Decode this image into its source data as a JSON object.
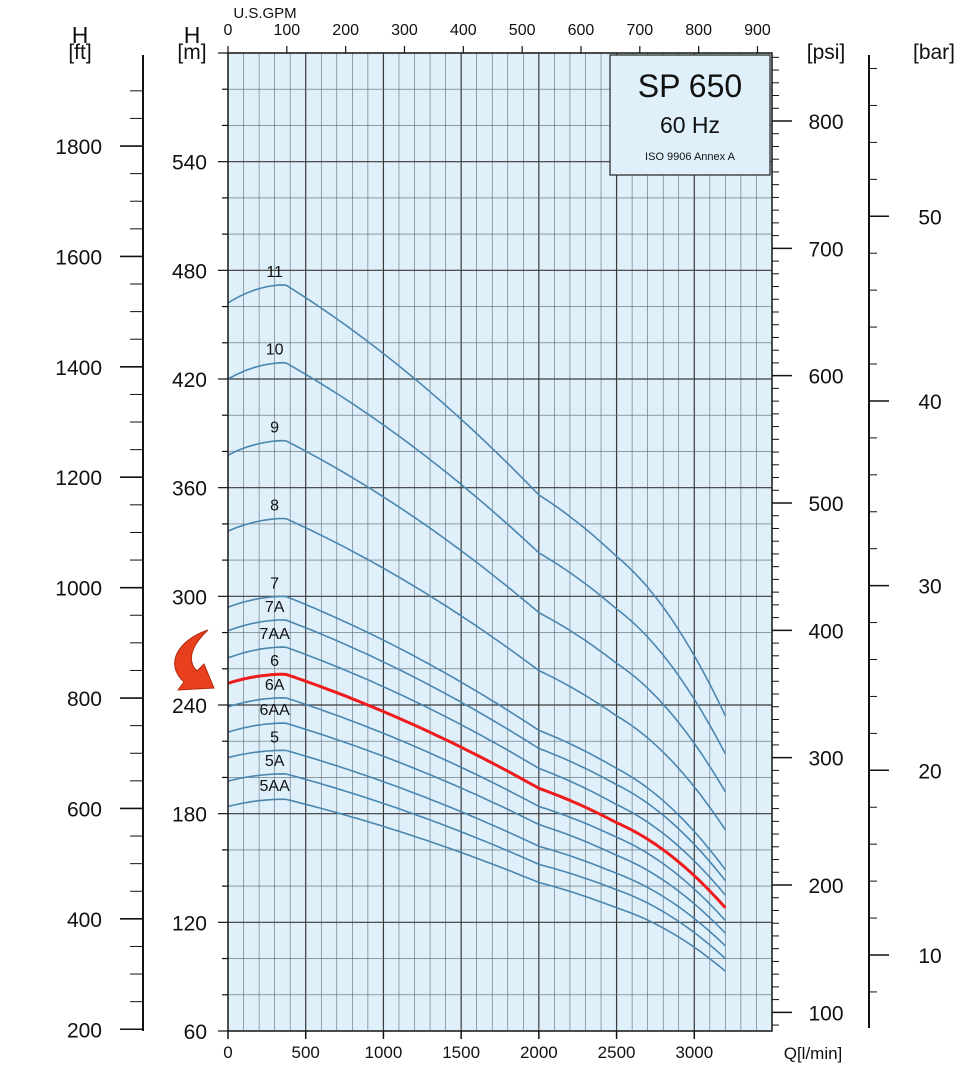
{
  "chart_data": {
    "type": "line",
    "title": "SP 650",
    "subtitle": "60 Hz",
    "note": "ISO 9906 Annex A",
    "xlabel": "Q[l/min]",
    "x2label": "U.S.GPM",
    "ylabel_left_ft": "[ft]",
    "ylabel_left_m": "[m]",
    "ylabel_h": "H",
    "ylabel_right_psi": "[psi]",
    "ylabel_right_bar": "[bar]",
    "xlim": [
      0,
      3500
    ],
    "ylim": [
      60,
      600
    ],
    "x_ticks": [
      "0",
      "500",
      "1000",
      "1500",
      "2000",
      "2500",
      "3000"
    ],
    "gpm_ticks": [
      "0",
      "100",
      "200",
      "300",
      "400",
      "500",
      "600",
      "700",
      "800",
      "900"
    ],
    "m_ticks": [
      "60",
      "120",
      "180",
      "240",
      "300",
      "360",
      "420",
      "480",
      "540"
    ],
    "ft_ticks": [
      "200",
      "400",
      "600",
      "800",
      "1000",
      "1200",
      "1400",
      "1600",
      "1800"
    ],
    "psi_ticks": [
      "100",
      "200",
      "300",
      "400",
      "500",
      "600",
      "700",
      "800"
    ],
    "bar_ticks": [
      "10",
      "20",
      "30",
      "40",
      "50"
    ],
    "grid": true,
    "highlight_color": "#ee1c1c",
    "curve_color": "#4a86b0",
    "background_color": "#dff0fb",
    "arrow_color": "#e8401c",
    "series": [
      {
        "name": "11",
        "y_at_0": 462,
        "peak": 472,
        "y_at_2000": 356,
        "y_at_2500": 322,
        "y_at_3200": 234
      },
      {
        "name": "10",
        "y_at_0": 420,
        "peak": 429,
        "y_at_2000": 324,
        "y_at_2500": 293,
        "y_at_3200": 213
      },
      {
        "name": "9",
        "y_at_0": 378,
        "peak": 386,
        "y_at_2000": 291,
        "y_at_2500": 263,
        "y_at_3200": 192
      },
      {
        "name": "8",
        "y_at_0": 336,
        "peak": 343,
        "y_at_2000": 259,
        "y_at_2500": 234,
        "y_at_3200": 171
      },
      {
        "name": "7",
        "y_at_0": 294,
        "peak": 300,
        "y_at_2000": 226,
        "y_at_2500": 205,
        "y_at_3200": 149
      },
      {
        "name": "7A",
        "y_at_0": 281,
        "peak": 287,
        "y_at_2000": 216,
        "y_at_2500": 196,
        "y_at_3200": 143
      },
      {
        "name": "7AA",
        "y_at_0": 266,
        "peak": 272,
        "y_at_2000": 205,
        "y_at_2500": 185,
        "y_at_3200": 135
      },
      {
        "name": "6",
        "y_at_0": 252,
        "peak": 257,
        "y_at_2000": 194,
        "y_at_2500": 175,
        "y_at_3200": 128
      },
      {
        "name": "6A",
        "y_at_0": 239,
        "peak": 244,
        "y_at_2000": 184,
        "y_at_2500": 167,
        "y_at_3200": 121
      },
      {
        "name": "6AA",
        "y_at_0": 225,
        "peak": 230,
        "y_at_2000": 174,
        "y_at_2500": 157,
        "y_at_3200": 114
      },
      {
        "name": "5",
        "y_at_0": 211,
        "peak": 215,
        "y_at_2000": 162,
        "y_at_2500": 147,
        "y_at_3200": 107
      },
      {
        "name": "5A",
        "y_at_0": 198,
        "peak": 202,
        "y_at_2000": 152,
        "y_at_2500": 138,
        "y_at_3200": 100
      },
      {
        "name": "5AA",
        "y_at_0": 184,
        "peak": 188,
        "y_at_2000": 142,
        "y_at_2500": 128,
        "y_at_3200": 93
      }
    ]
  }
}
